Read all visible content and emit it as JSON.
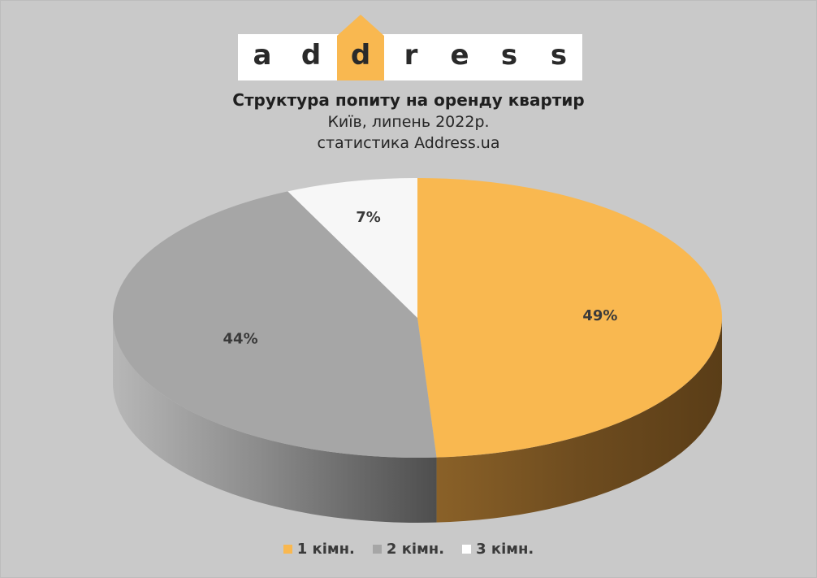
{
  "logo": {
    "letters": [
      "a",
      "d",
      "d",
      "r",
      "e",
      "s",
      "s"
    ],
    "accent": "#f9b850"
  },
  "chart_data": {
    "type": "pie",
    "title": "Структура попиту на оренду квартир",
    "subtitle_lines": [
      "Київ, липень 2022р.",
      "статистика Address.ua"
    ],
    "slices": [
      {
        "name": "1 кімн.",
        "value": 49,
        "label": "49%",
        "color": "#f9b850",
        "side_color": "#6b4a1c"
      },
      {
        "name": "2 кімн.",
        "value": 44,
        "label": "44%",
        "color": "#a6a6a6",
        "side_color": "#5a5a5a"
      },
      {
        "name": "3 кімн.",
        "value": 7,
        "label": "7%",
        "color": "#f7f7f7",
        "side_color": "#bdbdbd"
      }
    ],
    "legend_position": "bottom",
    "style": "3d"
  }
}
